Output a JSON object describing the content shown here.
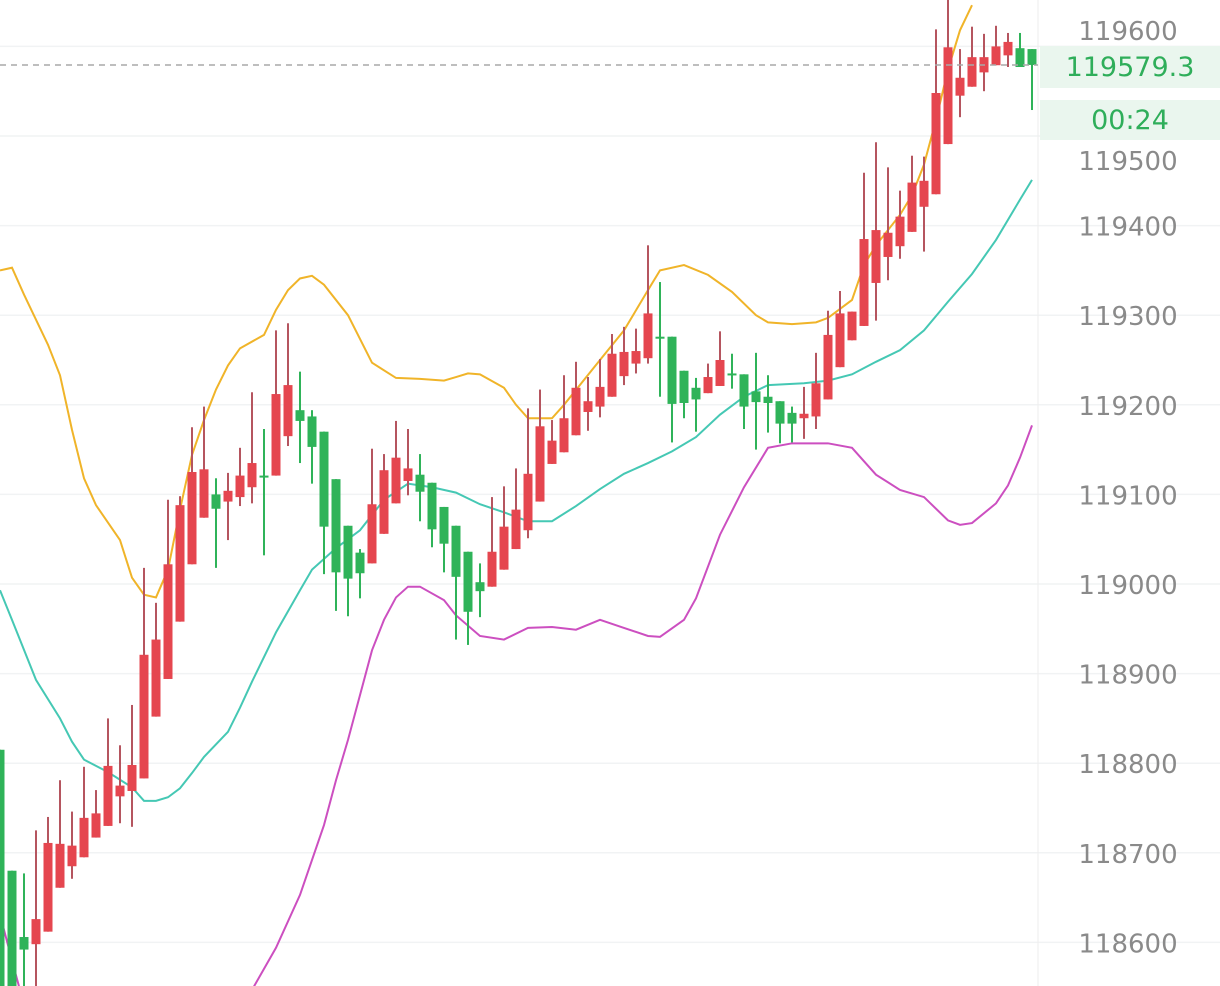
{
  "chart_data": {
    "type": "candlestick",
    "y_ticks": [
      "118600",
      "118700",
      "118800",
      "118900",
      "119000",
      "119100",
      "119200",
      "119300",
      "119400",
      "119500",
      "119600"
    ],
    "ylim": [
      118550,
      119650
    ],
    "grid": true,
    "colors": {
      "up": "#e5464f",
      "down": "#2fb359",
      "upper_band": "#f0b429",
      "middle_band": "#45c8b4",
      "lower_band": "#cc4fc0",
      "last_price": "#2fae5a"
    },
    "candles_ohlc": [
      [
        118815,
        118815,
        118530,
        118540
      ],
      [
        118680,
        118680,
        118530,
        118540
      ],
      [
        118606,
        118677,
        118540,
        118592
      ],
      [
        118598,
        118725,
        118540,
        118626
      ],
      [
        118612,
        118740,
        118612,
        118711
      ],
      [
        118661,
        118781,
        118661,
        118710
      ],
      [
        118685,
        118746,
        118671,
        118708
      ],
      [
        118695,
        118796,
        118695,
        118739
      ],
      [
        118717,
        118770,
        118717,
        118744
      ],
      [
        118730,
        118850,
        118730,
        118797
      ],
      [
        118763,
        118820,
        118733,
        118775
      ],
      [
        118769,
        118865,
        118729,
        118798
      ],
      [
        118783,
        119018,
        118783,
        118921
      ],
      [
        118852,
        118979,
        118852,
        118938
      ],
      [
        118894,
        119094,
        118894,
        119022
      ],
      [
        118958,
        119098,
        118958,
        119088
      ],
      [
        119022,
        119175,
        119022,
        119125
      ],
      [
        119074,
        119198,
        119074,
        119128
      ],
      [
        119100,
        119118,
        119018,
        119084
      ],
      [
        119092,
        119124,
        119049,
        119104
      ],
      [
        119097,
        119152,
        119087,
        119121
      ],
      [
        119108,
        119214,
        119090,
        119135
      ],
      [
        119121,
        119173,
        119032,
        119120
      ],
      [
        119121,
        119283,
        119121,
        119212
      ],
      [
        119165,
        119291,
        119154,
        119222
      ],
      [
        119194,
        119237,
        119135,
        119182
      ],
      [
        119187,
        119194,
        119112,
        119153
      ],
      [
        119170,
        119170,
        119011,
        119064
      ],
      [
        119117,
        119117,
        118970,
        119013
      ],
      [
        119065,
        119065,
        118964,
        119006
      ],
      [
        119035,
        119039,
        118984,
        119012
      ],
      [
        119023,
        119151,
        119023,
        119089
      ],
      [
        119056,
        119145,
        119056,
        119127
      ],
      [
        119090,
        119182,
        119090,
        119141
      ],
      [
        119115,
        119173,
        119099,
        119129
      ],
      [
        119122,
        119145,
        119070,
        119103
      ],
      [
        119113,
        119113,
        119041,
        119061
      ],
      [
        119086,
        119086,
        119013,
        119045
      ],
      [
        119065,
        119065,
        118938,
        119008
      ],
      [
        119036,
        119036,
        118932,
        118969
      ],
      [
        119002,
        119023,
        118963,
        118992
      ],
      [
        118997,
        119097,
        118997,
        119036
      ],
      [
        119016,
        119109,
        119016,
        119064
      ],
      [
        119039,
        119129,
        119039,
        119083
      ],
      [
        119060,
        119196,
        119051,
        119123
      ],
      [
        119092,
        119217,
        119092,
        119176
      ],
      [
        119134,
        119183,
        119134,
        119160
      ],
      [
        119147,
        119233,
        119147,
        119185
      ],
      [
        119166,
        119248,
        119166,
        119219
      ],
      [
        119192,
        119231,
        119171,
        119204
      ],
      [
        119198,
        119251,
        119186,
        119220
      ],
      [
        119209,
        119279,
        119209,
        119257
      ],
      [
        119232,
        119287,
        119222,
        119259
      ],
      [
        119246,
        119285,
        119235,
        119260
      ],
      [
        119252,
        119378,
        119246,
        119302
      ],
      [
        119276,
        119337,
        119209,
        119275
      ],
      [
        119276,
        119276,
        119158,
        119201
      ],
      [
        119238,
        119238,
        119185,
        119202
      ],
      [
        119219,
        119230,
        119170,
        119206
      ],
      [
        119213,
        119246,
        119213,
        119231
      ],
      [
        119221,
        119282,
        119221,
        119250
      ],
      [
        119235,
        119257,
        119218,
        119234
      ],
      [
        119234,
        119234,
        119173,
        119198
      ],
      [
        119215,
        119258,
        119150,
        119203
      ],
      [
        119209,
        119233,
        119169,
        119202
      ],
      [
        119204,
        119204,
        119157,
        119179
      ],
      [
        119191,
        119198,
        119158,
        119179
      ],
      [
        119185,
        119220,
        119162,
        119190
      ],
      [
        119187,
        119258,
        119173,
        119224
      ],
      [
        119206,
        119305,
        119206,
        119278
      ],
      [
        119242,
        119327,
        119242,
        119302
      ],
      [
        119272,
        119304,
        119272,
        119304
      ],
      [
        119288,
        119459,
        119288,
        119385
      ],
      [
        119336,
        119493,
        119294,
        119395
      ],
      [
        119365,
        119465,
        119339,
        119392
      ],
      [
        119377,
        119439,
        119363,
        119410
      ],
      [
        119393,
        119478,
        119393,
        119448
      ],
      [
        119421,
        119477,
        119371,
        119450
      ],
      [
        119435,
        119619,
        119435,
        119548
      ],
      [
        119491,
        119660,
        119491,
        119599
      ],
      [
        119545,
        119597,
        119521,
        119565
      ],
      [
        119555,
        119622,
        119555,
        119588
      ],
      [
        119571,
        119614,
        119550,
        119588
      ],
      [
        119579,
        119623,
        119579,
        119600
      ],
      [
        119590,
        119615,
        119577,
        119605
      ],
      [
        119598,
        119615,
        119577,
        119577
      ],
      [
        119597,
        119597,
        119529,
        119579.3
      ]
    ],
    "upper_band": [
      [
        0,
        119350
      ],
      [
        1,
        119353
      ],
      [
        2,
        119323
      ],
      [
        3,
        119295
      ],
      [
        4,
        119267
      ],
      [
        5,
        119233
      ],
      [
        6,
        119172
      ],
      [
        7,
        119118
      ],
      [
        8,
        119088
      ],
      [
        10,
        119049
      ],
      [
        11,
        119007
      ],
      [
        12,
        118988
      ],
      [
        13,
        118985
      ],
      [
        14,
        119016
      ],
      [
        15,
        119083
      ],
      [
        16,
        119144
      ],
      [
        17,
        119183
      ],
      [
        18,
        119217
      ],
      [
        19,
        119244
      ],
      [
        20,
        119263
      ],
      [
        22,
        119278
      ],
      [
        23,
        119306
      ],
      [
        24,
        119328
      ],
      [
        25,
        119341
      ],
      [
        26,
        119344
      ],
      [
        27,
        119334
      ],
      [
        29,
        119300
      ],
      [
        31,
        119247
      ],
      [
        33,
        119230
      ],
      [
        35,
        119229
      ],
      [
        37,
        119227
      ],
      [
        38,
        119231
      ],
      [
        39,
        119235
      ],
      [
        40,
        119234
      ],
      [
        42,
        119219
      ],
      [
        43,
        119200
      ],
      [
        44,
        119185
      ],
      [
        46,
        119185
      ],
      [
        47,
        119200
      ],
      [
        50,
        119250
      ],
      [
        52,
        119283
      ],
      [
        54,
        119328
      ],
      [
        55,
        119350
      ],
      [
        57,
        119356
      ],
      [
        59,
        119345
      ],
      [
        61,
        119326
      ],
      [
        63,
        119300
      ],
      [
        64,
        119292
      ],
      [
        66,
        119290
      ],
      [
        68,
        119292
      ],
      [
        69,
        119297
      ],
      [
        71,
        119317
      ],
      [
        72,
        119356
      ],
      [
        73,
        119378
      ],
      [
        75,
        119412
      ],
      [
        76,
        119434
      ],
      [
        77,
        119468
      ],
      [
        78,
        119518
      ],
      [
        79,
        119574
      ],
      [
        80,
        119618
      ],
      [
        81,
        119646
      ]
    ],
    "middle_band": [
      [
        0,
        118993
      ],
      [
        1,
        118960
      ],
      [
        3,
        118893
      ],
      [
        5,
        118850
      ],
      [
        6,
        118824
      ],
      [
        7,
        118804
      ],
      [
        9,
        118790
      ],
      [
        11,
        118773
      ],
      [
        12,
        118758
      ],
      [
        13,
        118758
      ],
      [
        14,
        118762
      ],
      [
        15,
        118772
      ],
      [
        16,
        118789
      ],
      [
        17,
        118807
      ],
      [
        19,
        118835
      ],
      [
        20,
        118862
      ],
      [
        21,
        118891
      ],
      [
        23,
        118946
      ],
      [
        25,
        118993
      ],
      [
        26,
        119016
      ],
      [
        28,
        119040
      ],
      [
        30,
        119060
      ],
      [
        32,
        119094
      ],
      [
        34,
        119112
      ],
      [
        36,
        119108
      ],
      [
        38,
        119102
      ],
      [
        40,
        119089
      ],
      [
        42,
        119080
      ],
      [
        44,
        119070
      ],
      [
        46,
        119070
      ],
      [
        48,
        119087
      ],
      [
        50,
        119106
      ],
      [
        52,
        119123
      ],
      [
        54,
        119135
      ],
      [
        56,
        119148
      ],
      [
        58,
        119164
      ],
      [
        60,
        119189
      ],
      [
        62,
        119209
      ],
      [
        64,
        119222
      ],
      [
        67,
        119224
      ],
      [
        69,
        119227
      ],
      [
        71,
        119234
      ],
      [
        73,
        119248
      ],
      [
        75,
        119261
      ],
      [
        77,
        119283
      ],
      [
        79,
        119315
      ],
      [
        81,
        119346
      ],
      [
        83,
        119384
      ],
      [
        85,
        119429
      ],
      [
        86,
        119451
      ]
    ],
    "lower_band": [
      [
        [
          0,
          118631
        ],
        [
          1,
          118580
        ],
        [
          2,
          118530
        ]
      ],
      [
        [
          21,
          118547
        ],
        [
          23,
          118594
        ],
        [
          25,
          118653
        ],
        [
          27,
          118731
        ],
        [
          28,
          118781
        ],
        [
          29,
          118826
        ],
        [
          31,
          118926
        ],
        [
          32,
          118960
        ],
        [
          33,
          118985
        ],
        [
          34,
          118997
        ],
        [
          35,
          118997
        ],
        [
          37,
          118982
        ],
        [
          38,
          118965
        ],
        [
          40,
          118942
        ],
        [
          42,
          118938
        ],
        [
          44,
          118951
        ],
        [
          46,
          118952
        ],
        [
          48,
          118949
        ],
        [
          50,
          118960
        ],
        [
          52,
          118951
        ],
        [
          54,
          118942
        ],
        [
          55,
          118941
        ],
        [
          57,
          118960
        ],
        [
          58,
          118984
        ],
        [
          60,
          119055
        ],
        [
          62,
          119108
        ],
        [
          64,
          119152
        ],
        [
          66,
          119157
        ],
        [
          68,
          119157
        ],
        [
          69,
          119157
        ],
        [
          71,
          119152
        ],
        [
          73,
          119122
        ],
        [
          75,
          119105
        ],
        [
          77,
          119097
        ],
        [
          79,
          119071
        ],
        [
          80,
          119066
        ],
        [
          81,
          119068
        ],
        [
          83,
          119090
        ],
        [
          84,
          119110
        ],
        [
          85,
          119141
        ],
        [
          86,
          119177
        ]
      ]
    ]
  },
  "last_price_label": "119579.3",
  "countdown_label": "00:24"
}
